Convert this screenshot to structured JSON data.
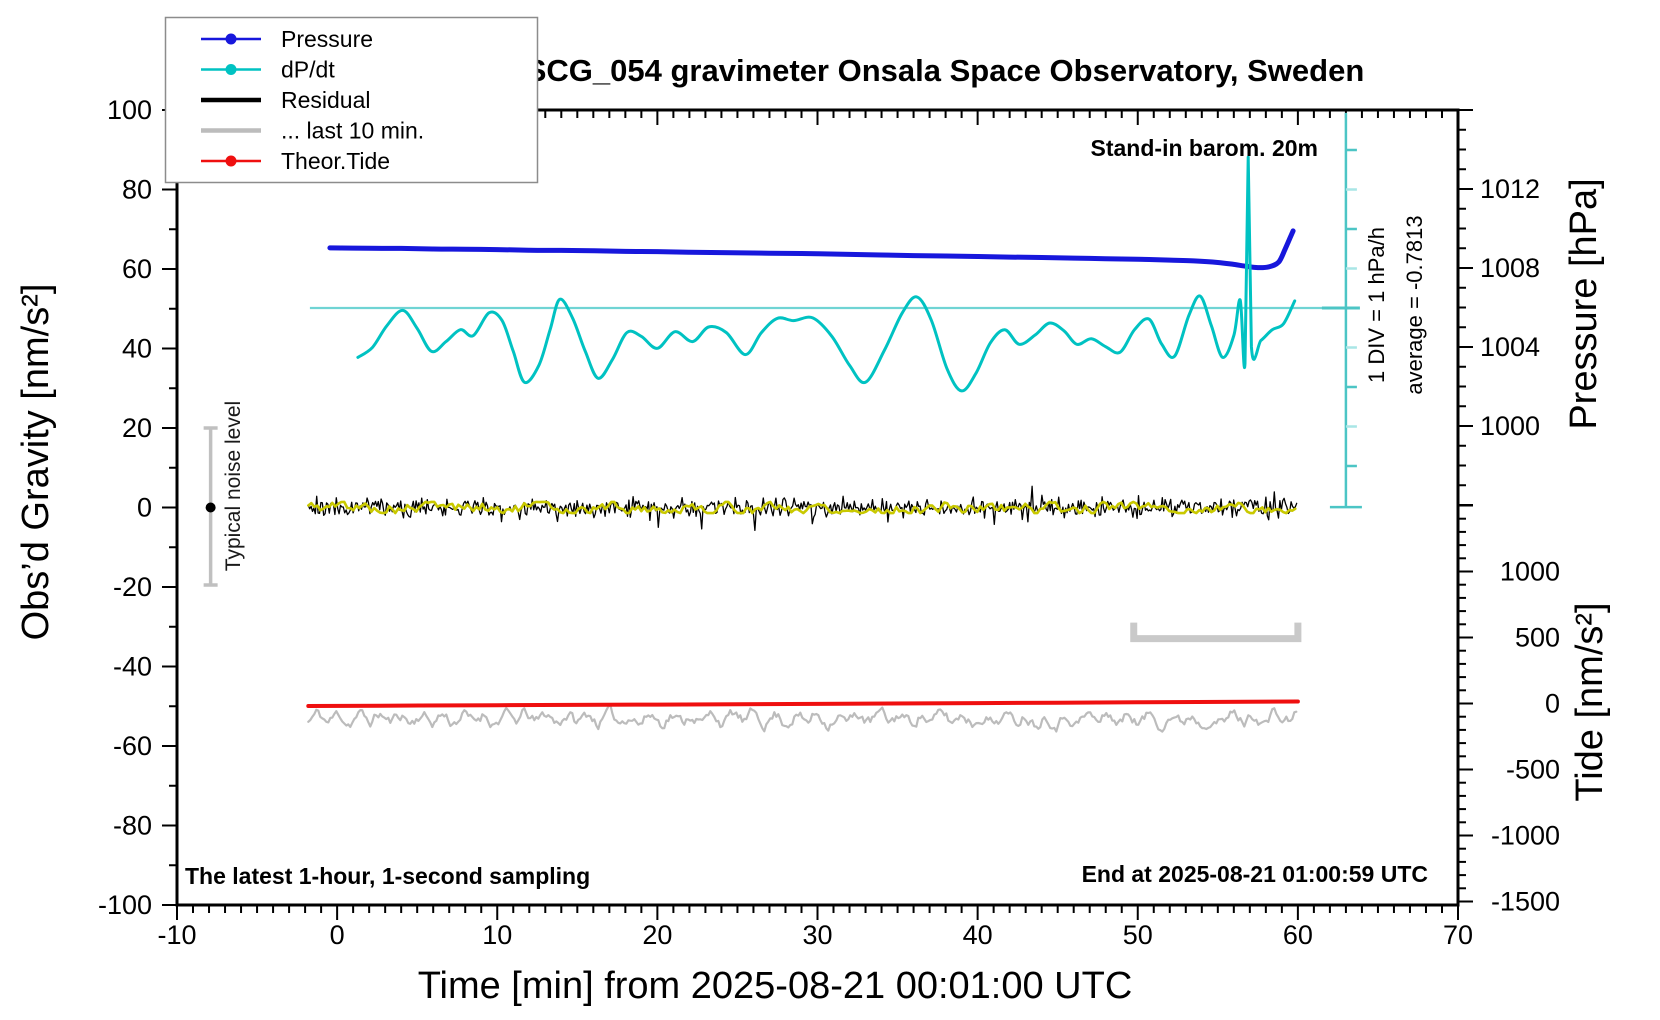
{
  "header": {
    "title": "SCG_054 gravimeter Onsala Space Observatory, Sweden"
  },
  "legend": {
    "items": [
      {
        "label": "Pressure",
        "color": "#1717dc",
        "dot": true,
        "line_width": 2.5
      },
      {
        "label": "dP/dt",
        "color": "#00c2c2",
        "dot": true,
        "line_width": 2.5
      },
      {
        "label": "Residual",
        "color": "#000000",
        "dot": false,
        "line_width": 4.5
      },
      {
        "label": "... last 10 min.",
        "color": "#bcbcbc",
        "dot": false,
        "line_width": 4.5
      },
      {
        "label": "Theor.Tide",
        "color": "#ef0f0f",
        "dot": true,
        "line_width": 2.5
      }
    ]
  },
  "annotations": {
    "stand_in_barometer": "Stand-in barom. 20m",
    "div_scale": "1 DIV = 1 hPa/h",
    "average": "average = -0.7813",
    "typical_noise_level": "Typical noise level",
    "sampling_note": "The latest 1-hour, 1-second sampling",
    "end_time": "End at 2025-08-21 01:00:59 UTC"
  },
  "chart_data": {
    "type": "line",
    "title": "SCG_054 gravimeter Onsala Space Observatory, Sweden",
    "x_axis": {
      "label": "Time [min] from 2025-08-21 00:01:00 UTC",
      "range": [
        -10,
        70
      ],
      "major_tick": 10,
      "minor_tick": 1,
      "tick_labels": [
        -10,
        0,
        10,
        20,
        30,
        40,
        50,
        60,
        70
      ]
    },
    "y_axis_left": {
      "label": "Obs’d Gravity [nm/s²]",
      "range": [
        -100,
        100
      ],
      "major_tick": 20,
      "minor_tick": 10,
      "tick_labels": [
        100,
        80,
        60,
        40,
        20,
        0,
        -20,
        -40,
        -60,
        -80,
        -100
      ]
    },
    "y_axis_pressure": {
      "label": "Pressure [hPa]",
      "visible_range": [
        996,
        1016
      ],
      "major_tick": 4,
      "minor_tick": 1,
      "tick_labels": [
        1012,
        1008,
        1004,
        1000
      ]
    },
    "y_axis_tide": {
      "label": "Tide [nm/s²]",
      "range": [
        -1500,
        1500
      ],
      "major_tick": 500,
      "minor_tick": 100,
      "tick_labels": [
        1000,
        500,
        0,
        -500,
        -1000,
        -1500
      ]
    },
    "series": [
      {
        "name": "Pressure",
        "unit": "hPa",
        "axis": "pressure",
        "color": "#1717dc",
        "width": 5,
        "points": [
          [
            -0.45,
            1009.02
          ],
          [
            2,
            1009.0
          ],
          [
            4,
            1008.99
          ],
          [
            6,
            1008.96
          ],
          [
            8,
            1008.95
          ],
          [
            10,
            1008.93
          ],
          [
            12,
            1008.9
          ],
          [
            14,
            1008.89
          ],
          [
            16,
            1008.87
          ],
          [
            18,
            1008.84
          ],
          [
            20,
            1008.83
          ],
          [
            22,
            1008.8
          ],
          [
            24,
            1008.78
          ],
          [
            26,
            1008.76
          ],
          [
            28,
            1008.74
          ],
          [
            30,
            1008.72
          ],
          [
            32,
            1008.69
          ],
          [
            34,
            1008.66
          ],
          [
            36,
            1008.63
          ],
          [
            38,
            1008.61
          ],
          [
            40,
            1008.58
          ],
          [
            42,
            1008.55
          ],
          [
            44,
            1008.53
          ],
          [
            46,
            1008.5
          ],
          [
            48,
            1008.47
          ],
          [
            50,
            1008.44
          ],
          [
            52,
            1008.4
          ],
          [
            53.5,
            1008.36
          ],
          [
            55,
            1008.28
          ],
          [
            56,
            1008.18
          ],
          [
            56.8,
            1008.08
          ],
          [
            57.5,
            1008.02
          ],
          [
            58.2,
            1008.06
          ],
          [
            58.8,
            1008.3
          ],
          [
            59.2,
            1008.95
          ],
          [
            59.7,
            1009.88
          ]
        ]
      },
      {
        "name": "dP/dt",
        "unit": "hPa/h",
        "axis": "dpdt",
        "color": "#00c2c2",
        "width": 3,
        "average_hpa_per_h": -0.7813,
        "points": [
          [
            1.3,
            -1.25
          ],
          [
            2.2,
            -1.0
          ],
          [
            3.1,
            -0.45
          ],
          [
            4.1,
            -0.06
          ],
          [
            5.0,
            -0.52
          ],
          [
            5.9,
            -1.1
          ],
          [
            6.8,
            -0.85
          ],
          [
            7.7,
            -0.55
          ],
          [
            8.5,
            -0.7
          ],
          [
            9.5,
            -0.12
          ],
          [
            10.3,
            -0.32
          ],
          [
            11.0,
            -1.1
          ],
          [
            11.7,
            -1.88
          ],
          [
            12.6,
            -1.45
          ],
          [
            13.3,
            -0.55
          ],
          [
            13.9,
            0.22
          ],
          [
            14.7,
            -0.25
          ],
          [
            15.5,
            -1.1
          ],
          [
            16.3,
            -1.78
          ],
          [
            17.2,
            -1.3
          ],
          [
            18.1,
            -0.62
          ],
          [
            19.0,
            -0.72
          ],
          [
            20.0,
            -1.02
          ],
          [
            21.1,
            -0.6
          ],
          [
            22.2,
            -0.85
          ],
          [
            23.2,
            -0.48
          ],
          [
            24.3,
            -0.62
          ],
          [
            25.5,
            -1.18
          ],
          [
            26.5,
            -0.62
          ],
          [
            27.5,
            -0.26
          ],
          [
            28.5,
            -0.32
          ],
          [
            29.7,
            -0.25
          ],
          [
            30.9,
            -0.72
          ],
          [
            32.0,
            -1.45
          ],
          [
            33.0,
            -1.88
          ],
          [
            34.2,
            -1.05
          ],
          [
            35.3,
            -0.12
          ],
          [
            36.2,
            0.28
          ],
          [
            37.1,
            -0.3
          ],
          [
            38.1,
            -1.55
          ],
          [
            39.0,
            -2.1
          ],
          [
            39.9,
            -1.65
          ],
          [
            40.8,
            -0.88
          ],
          [
            41.7,
            -0.55
          ],
          [
            42.6,
            -0.92
          ],
          [
            43.6,
            -0.68
          ],
          [
            44.5,
            -0.38
          ],
          [
            45.4,
            -0.58
          ],
          [
            46.2,
            -0.92
          ],
          [
            47.1,
            -0.78
          ],
          [
            48.0,
            -0.98
          ],
          [
            48.9,
            -1.12
          ],
          [
            49.8,
            -0.55
          ],
          [
            50.7,
            -0.28
          ],
          [
            51.5,
            -0.92
          ],
          [
            52.3,
            -1.22
          ],
          [
            53.2,
            -0.18
          ],
          [
            53.9,
            0.3
          ],
          [
            54.6,
            -0.45
          ],
          [
            55.3,
            -1.25
          ],
          [
            56.0,
            -0.7
          ],
          [
            56.4,
            0.2
          ],
          [
            56.7,
            -1.4
          ],
          [
            56.9,
            3.82
          ],
          [
            57.1,
            -0.98
          ],
          [
            57.7,
            -0.82
          ],
          [
            58.4,
            -0.55
          ],
          [
            59.1,
            -0.4
          ],
          [
            59.8,
            0.18
          ]
        ]
      },
      {
        "name": "Residual",
        "unit": "nm/s²",
        "axis": "gravity",
        "color": "#000000",
        "width": 1.3,
        "t_range": [
          -1.8,
          60
        ],
        "noise": {
          "mean": 0,
          "sigma": 2.2,
          "spike_chance": 0.05,
          "spike_gain": 2.5,
          "seed": 20
        }
      },
      {
        "name": "Residual smoothed",
        "unit": "nm/s²",
        "axis": "gravity",
        "color": "#c9c900",
        "width": 2.6,
        "t_range": [
          -1.8,
          60
        ],
        "walk": {
          "seed": 5,
          "decay": 0.82,
          "step": 2.6,
          "max": 1.4
        }
      },
      {
        "name": "... last 10 min.",
        "unit": "nm/s²",
        "axis": "gravity",
        "color": "#bcbcbc",
        "width": 2.2,
        "t_range": [
          -1.8,
          60
        ],
        "offset": -53,
        "walk": {
          "seed": 11,
          "decay": 0.72,
          "step": 2.4,
          "max": 3.4
        },
        "sine_amp": 1.0,
        "sine_period_min": 1.3
      },
      {
        "name": "Theor.Tide",
        "unit": "nm/s² (tide axis)",
        "axis": "tide",
        "color": "#ef0f0f",
        "width": 4,
        "points": [
          [
            -1.8,
            -19
          ],
          [
            10,
            -13
          ],
          [
            20,
            -8
          ],
          [
            30,
            -3
          ],
          [
            40,
            3
          ],
          [
            50,
            9
          ],
          [
            60,
            15
          ]
        ]
      }
    ],
    "reference_marks": {
      "dpdt_zero_line": {
        "value_hpa_per_h": 0,
        "t_start": -1.7,
        "t_end": 63.8,
        "color": "#6fd4d4"
      },
      "dpdt_scale_bar": {
        "t": 63,
        "range_hpa_per_h": [
          -5.04,
          4.94
        ],
        "tick_every": 1,
        "color": "#4cc5c5",
        "light_tick_color": "#a9e6e6"
      },
      "last10_bracket": {
        "t_start": 49.75,
        "t_end": 60,
        "gravity_level": -33,
        "color": "#c9c9c9"
      },
      "noise_errorbar": {
        "t": -7.9,
        "gravity_range": [
          -19.5,
          20
        ],
        "dot_at": 0,
        "color": "#c0c0c0"
      }
    }
  }
}
